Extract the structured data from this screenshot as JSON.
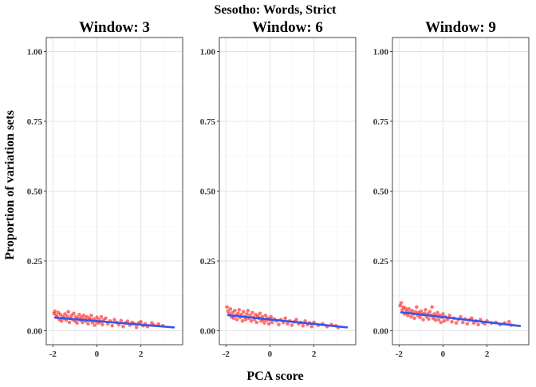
{
  "chart_data": {
    "type": "scatter",
    "title": "Sesotho: Words, Strict",
    "xlabel": "PCA score",
    "ylabel": "Proportion of variation sets",
    "xlim": [
      -2.3,
      3.9
    ],
    "ylim": [
      -0.05,
      1.05
    ],
    "x_ticks": [
      -2,
      0,
      2
    ],
    "x_tick_labels": [
      "-2",
      "0",
      "2"
    ],
    "y_ticks": [
      0,
      0.25,
      0.5,
      0.75,
      1
    ],
    "y_tick_labels": [
      "0.00",
      "0.25",
      "0.50",
      "0.75",
      "1.00"
    ],
    "grid": true,
    "point_color": "#ff0000",
    "line_color": "#3355ee",
    "panels": [
      {
        "title": "Window: 3",
        "trend": {
          "x": [
            -1.9,
            3.5
          ],
          "y": [
            0.047,
            0.012
          ]
        },
        "points": [
          [
            -1.95,
            0.062
          ],
          [
            -1.9,
            0.07
          ],
          [
            -1.85,
            0.055
          ],
          [
            -1.8,
            0.048
          ],
          [
            -1.75,
            0.065
          ],
          [
            -1.7,
            0.04
          ],
          [
            -1.65,
            0.058
          ],
          [
            -1.6,
            0.035
          ],
          [
            -1.55,
            0.05
          ],
          [
            -1.5,
            0.045
          ],
          [
            -1.45,
            0.06
          ],
          [
            -1.4,
            0.038
          ],
          [
            -1.35,
            0.052
          ],
          [
            -1.3,
            0.068
          ],
          [
            -1.25,
            0.03
          ],
          [
            -1.2,
            0.045
          ],
          [
            -1.15,
            0.055
          ],
          [
            -1.1,
            0.04
          ],
          [
            -1.05,
            0.062
          ],
          [
            -1.0,
            0.035
          ],
          [
            -0.95,
            0.05
          ],
          [
            -0.9,
            0.028
          ],
          [
            -0.85,
            0.045
          ],
          [
            -0.8,
            0.058
          ],
          [
            -0.75,
            0.038
          ],
          [
            -0.7,
            0.048
          ],
          [
            -0.65,
            0.03
          ],
          [
            -0.6,
            0.055
          ],
          [
            -0.55,
            0.042
          ],
          [
            -0.5,
            0.035
          ],
          [
            -0.45,
            0.05
          ],
          [
            -0.4,
            0.025
          ],
          [
            -0.35,
            0.045
          ],
          [
            -0.3,
            0.038
          ],
          [
            -0.25,
            0.055
          ],
          [
            -0.2,
            0.03
          ],
          [
            -0.15,
            0.042
          ],
          [
            -0.1,
            0.02
          ],
          [
            -0.05,
            0.035
          ],
          [
            0.0,
            0.048
          ],
          [
            0.05,
            0.028
          ],
          [
            0.1,
            0.04
          ],
          [
            0.15,
            0.032
          ],
          [
            0.2,
            0.05
          ],
          [
            0.25,
            0.022
          ],
          [
            0.3,
            0.038
          ],
          [
            0.4,
            0.045
          ],
          [
            0.5,
            0.025
          ],
          [
            0.6,
            0.035
          ],
          [
            0.7,
            0.018
          ],
          [
            0.8,
            0.04
          ],
          [
            0.9,
            0.03
          ],
          [
            1.0,
            0.022
          ],
          [
            1.1,
            0.036
          ],
          [
            1.2,
            0.015
          ],
          [
            1.3,
            0.028
          ],
          [
            1.4,
            0.034
          ],
          [
            1.5,
            0.02
          ],
          [
            1.6,
            0.03
          ],
          [
            1.7,
            0.025
          ],
          [
            1.8,
            0.012
          ],
          [
            1.9,
            0.028
          ],
          [
            2.0,
            0.032
          ],
          [
            2.1,
            0.018
          ],
          [
            2.2,
            0.025
          ],
          [
            2.3,
            0.015
          ],
          [
            2.5,
            0.028
          ],
          [
            2.6,
            0.02
          ],
          [
            2.8,
            0.024
          ],
          [
            3.0,
            0.018
          ]
        ]
      },
      {
        "title": "Window: 6",
        "trend": {
          "x": [
            -1.9,
            3.5
          ],
          "y": [
            0.056,
            0.012
          ]
        },
        "points": [
          [
            -1.95,
            0.085
          ],
          [
            -1.9,
            0.07
          ],
          [
            -1.85,
            0.06
          ],
          [
            -1.8,
            0.078
          ],
          [
            -1.75,
            0.05
          ],
          [
            -1.7,
            0.065
          ],
          [
            -1.65,
            0.045
          ],
          [
            -1.6,
            0.072
          ],
          [
            -1.55,
            0.055
          ],
          [
            -1.5,
            0.04
          ],
          [
            -1.45,
            0.062
          ],
          [
            -1.4,
            0.075
          ],
          [
            -1.35,
            0.048
          ],
          [
            -1.3,
            0.058
          ],
          [
            -1.25,
            0.035
          ],
          [
            -1.2,
            0.068
          ],
          [
            -1.15,
            0.05
          ],
          [
            -1.1,
            0.04
          ],
          [
            -1.05,
            0.06
          ],
          [
            -1.0,
            0.072
          ],
          [
            -0.95,
            0.045
          ],
          [
            -0.9,
            0.055
          ],
          [
            -0.85,
            0.035
          ],
          [
            -0.8,
            0.065
          ],
          [
            -0.75,
            0.048
          ],
          [
            -0.7,
            0.04
          ],
          [
            -0.65,
            0.058
          ],
          [
            -0.6,
            0.03
          ],
          [
            -0.55,
            0.052
          ],
          [
            -0.5,
            0.045
          ],
          [
            -0.45,
            0.062
          ],
          [
            -0.4,
            0.035
          ],
          [
            -0.35,
            0.05
          ],
          [
            -0.3,
            0.04
          ],
          [
            -0.25,
            0.028
          ],
          [
            -0.2,
            0.055
          ],
          [
            -0.15,
            0.038
          ],
          [
            -0.1,
            0.045
          ],
          [
            -0.05,
            0.025
          ],
          [
            0.0,
            0.04
          ],
          [
            0.05,
            0.05
          ],
          [
            0.1,
            0.03
          ],
          [
            0.2,
            0.042
          ],
          [
            0.3,
            0.035
          ],
          [
            0.4,
            0.022
          ],
          [
            0.5,
            0.04
          ],
          [
            0.6,
            0.03
          ],
          [
            0.7,
            0.045
          ],
          [
            0.8,
            0.025
          ],
          [
            0.9,
            0.035
          ],
          [
            1.0,
            0.02
          ],
          [
            1.1,
            0.032
          ],
          [
            1.2,
            0.04
          ],
          [
            1.3,
            0.025
          ],
          [
            1.4,
            0.03
          ],
          [
            1.5,
            0.018
          ],
          [
            1.6,
            0.035
          ],
          [
            1.7,
            0.022
          ],
          [
            1.8,
            0.028
          ],
          [
            1.9,
            0.015
          ],
          [
            2.0,
            0.03
          ],
          [
            2.2,
            0.02
          ],
          [
            2.4,
            0.025
          ],
          [
            2.6,
            0.015
          ],
          [
            2.8,
            0.022
          ],
          [
            3.0,
            0.018
          ],
          [
            3.1,
            0.012
          ]
        ]
      },
      {
        "title": "Window: 9",
        "trend": {
          "x": [
            -1.9,
            3.5
          ],
          "y": [
            0.066,
            0.017
          ]
        },
        "points": [
          [
            -1.95,
            0.09
          ],
          [
            -1.9,
            0.1
          ],
          [
            -1.85,
            0.075
          ],
          [
            -1.8,
            0.085
          ],
          [
            -1.75,
            0.06
          ],
          [
            -1.7,
            0.08
          ],
          [
            -1.65,
            0.07
          ],
          [
            -1.6,
            0.055
          ],
          [
            -1.55,
            0.078
          ],
          [
            -1.5,
            0.065
          ],
          [
            -1.45,
            0.05
          ],
          [
            -1.4,
            0.072
          ],
          [
            -1.35,
            0.06
          ],
          [
            -1.3,
            0.045
          ],
          [
            -1.25,
            0.068
          ],
          [
            -1.2,
            0.085
          ],
          [
            -1.15,
            0.055
          ],
          [
            -1.1,
            0.065
          ],
          [
            -1.05,
            0.048
          ],
          [
            -1.0,
            0.07
          ],
          [
            -0.95,
            0.058
          ],
          [
            -0.9,
            0.04
          ],
          [
            -0.85,
            0.062
          ],
          [
            -0.8,
            0.075
          ],
          [
            -0.75,
            0.05
          ],
          [
            -0.7,
            0.06
          ],
          [
            -0.65,
            0.042
          ],
          [
            -0.6,
            0.068
          ],
          [
            -0.55,
            0.055
          ],
          [
            -0.5,
            0.085
          ],
          [
            -0.45,
            0.045
          ],
          [
            -0.4,
            0.06
          ],
          [
            -0.35,
            0.038
          ],
          [
            -0.3,
            0.052
          ],
          [
            -0.25,
            0.065
          ],
          [
            -0.2,
            0.04
          ],
          [
            -0.15,
            0.055
          ],
          [
            -0.1,
            0.03
          ],
          [
            -0.05,
            0.048
          ],
          [
            0.0,
            0.06
          ],
          [
            0.05,
            0.035
          ],
          [
            0.1,
            0.05
          ],
          [
            0.2,
            0.04
          ],
          [
            0.3,
            0.055
          ],
          [
            0.4,
            0.032
          ],
          [
            0.5,
            0.045
          ],
          [
            0.6,
            0.028
          ],
          [
            0.7,
            0.04
          ],
          [
            0.8,
            0.05
          ],
          [
            0.9,
            0.03
          ],
          [
            1.0,
            0.042
          ],
          [
            1.1,
            0.025
          ],
          [
            1.2,
            0.038
          ],
          [
            1.3,
            0.045
          ],
          [
            1.4,
            0.028
          ],
          [
            1.5,
            0.035
          ],
          [
            1.6,
            0.022
          ],
          [
            1.7,
            0.04
          ],
          [
            1.8,
            0.03
          ],
          [
            1.9,
            0.025
          ],
          [
            2.0,
            0.035
          ],
          [
            2.2,
            0.028
          ],
          [
            2.4,
            0.03
          ],
          [
            2.6,
            0.022
          ],
          [
            2.8,
            0.028
          ],
          [
            3.0,
            0.032
          ],
          [
            3.1,
            0.02
          ]
        ]
      }
    ]
  }
}
